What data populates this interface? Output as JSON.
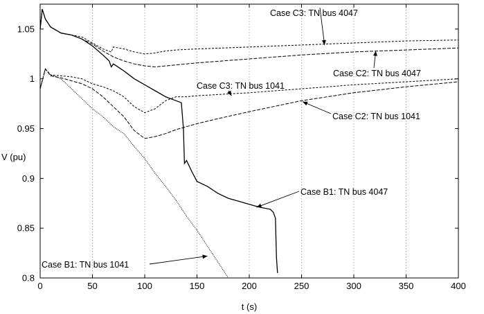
{
  "chart_data": {
    "type": "line",
    "title": "",
    "xlabel": "t (s)",
    "ylabel": "V (pu)",
    "xlim": [
      0,
      400
    ],
    "ylim": [
      0.8,
      1.075
    ],
    "xticks": [
      0,
      50,
      100,
      150,
      200,
      250,
      300,
      350,
      400
    ],
    "xtick_labels": [
      "0",
      "50",
      "100",
      "150",
      "200",
      "250",
      "300",
      "350",
      "400"
    ],
    "yticks": [
      0.8,
      0.85,
      0.9,
      0.95,
      1.0,
      1.05
    ],
    "ytick_labels": [
      "0.8",
      "0.85",
      "0.9",
      "0.95",
      "1",
      "1.05"
    ],
    "grid": "vertical",
    "series": [
      {
        "name": "Case C3: TN bus 4047",
        "style": "short-dash",
        "x": [
          0,
          2,
          5,
          10,
          20,
          30,
          40,
          50,
          60,
          68,
          70,
          80,
          90,
          100,
          110,
          120,
          130,
          150,
          200,
          250,
          300,
          350,
          400
        ],
        "y": [
          1.05,
          1.07,
          1.06,
          1.052,
          1.046,
          1.044,
          1.042,
          1.036,
          1.03,
          1.027,
          1.032,
          1.03,
          1.027,
          1.025,
          1.026,
          1.028,
          1.029,
          1.03,
          1.032,
          1.034,
          1.036,
          1.038,
          1.039
        ]
      },
      {
        "name": "Case C2: TN bus 4047",
        "style": "dash",
        "x": [
          0,
          2,
          5,
          10,
          20,
          30,
          40,
          50,
          60,
          70,
          80,
          90,
          100,
          110,
          120,
          130,
          150,
          200,
          250,
          300,
          350,
          400
        ],
        "y": [
          1.05,
          1.07,
          1.06,
          1.052,
          1.046,
          1.044,
          1.04,
          1.035,
          1.028,
          1.022,
          1.018,
          1.015,
          1.013,
          1.012,
          1.013,
          1.014,
          1.016,
          1.02,
          1.024,
          1.027,
          1.029,
          1.031
        ]
      },
      {
        "name": "Case C3: TN bus 1041",
        "style": "short-dash",
        "x": [
          0,
          5,
          10,
          20,
          30,
          40,
          50,
          60,
          70,
          80,
          90,
          100,
          110,
          120,
          130,
          140,
          150,
          200,
          250,
          300,
          350,
          400
        ],
        "y": [
          0.99,
          1.01,
          1.004,
          1.003,
          1.002,
          1.0,
          0.995,
          0.992,
          0.988,
          0.982,
          0.972,
          0.966,
          0.97,
          0.978,
          0.982,
          0.982,
          0.983,
          0.986,
          0.99,
          0.994,
          0.997,
          1.0
        ]
      },
      {
        "name": "Case C2: TN bus 1041",
        "style": "dash",
        "x": [
          0,
          5,
          10,
          20,
          30,
          40,
          50,
          60,
          70,
          80,
          90,
          100,
          110,
          120,
          130,
          140,
          150,
          170,
          200,
          250,
          300,
          350,
          400
        ],
        "y": [
          0.99,
          1.01,
          1.003,
          1.001,
          0.998,
          0.995,
          0.99,
          0.982,
          0.972,
          0.962,
          0.948,
          0.94,
          0.942,
          0.945,
          0.949,
          0.952,
          0.955,
          0.96,
          0.967,
          0.978,
          0.986,
          0.992,
          0.997
        ]
      },
      {
        "name": "Case B1: TN bus 4047",
        "style": "solid",
        "x": [
          0,
          2,
          5,
          10,
          20,
          30,
          40,
          50,
          60,
          66,
          68,
          70,
          80,
          90,
          100,
          110,
          120,
          130,
          135,
          137,
          138,
          140,
          145,
          150,
          160,
          170,
          180,
          190,
          200,
          210,
          220,
          223,
          225,
          226,
          227
        ],
        "y": [
          1.05,
          1.07,
          1.06,
          1.052,
          1.046,
          1.044,
          1.04,
          1.033,
          1.024,
          1.018,
          1.012,
          1.015,
          1.008,
          1.0,
          0.994,
          0.988,
          0.982,
          0.978,
          0.976,
          0.95,
          0.915,
          0.918,
          0.907,
          0.897,
          0.892,
          0.885,
          0.88,
          0.877,
          0.874,
          0.871,
          0.869,
          0.866,
          0.86,
          0.82,
          0.805
        ]
      },
      {
        "name": "Case B1: TN bus 1041",
        "style": "dot",
        "x": [
          0,
          5,
          10,
          20,
          30,
          40,
          50,
          60,
          70,
          80,
          90,
          100,
          110,
          120,
          130,
          140,
          150,
          160,
          170,
          180
        ],
        "y": [
          0.99,
          1.01,
          1.004,
          1.0,
          0.99,
          0.98,
          0.97,
          0.962,
          0.952,
          0.945,
          0.932,
          0.92,
          0.905,
          0.892,
          0.878,
          0.862,
          0.848,
          0.832,
          0.816,
          0.8
        ]
      }
    ],
    "annotations": [
      {
        "text": "Case C3: TN bus 4047",
        "target": [
          272,
          1.034
        ]
      },
      {
        "text": "Case C2: TN bus 4047",
        "target": [
          321,
          1.028
        ]
      },
      {
        "text": "Case C3: TN bus 1041",
        "target": [
          183,
          0.983
        ]
      },
      {
        "text": "Case C2: TN bus 1041",
        "target": [
          251,
          0.977
        ]
      },
      {
        "text": "Case B1: TN bus 4047",
        "target": [
          207,
          0.871
        ]
      },
      {
        "text": "Case B1: TN bus 1041",
        "target": [
          160,
          0.822
        ]
      }
    ]
  }
}
